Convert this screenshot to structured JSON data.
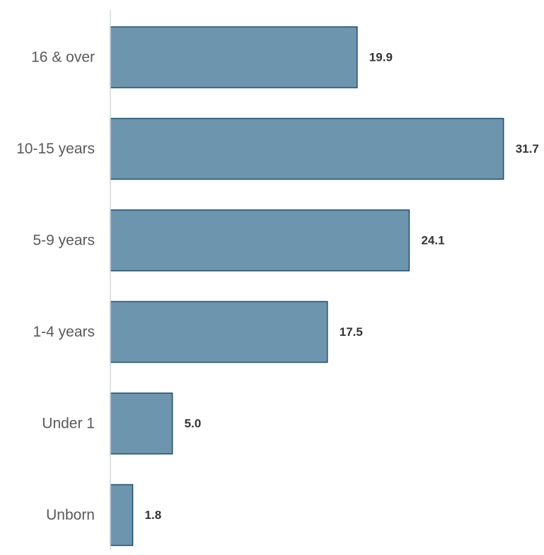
{
  "chart_data": {
    "type": "bar",
    "orientation": "horizontal",
    "categories": [
      "16 & over",
      "10-15 years",
      "5-9 years",
      "1-4 years",
      "Under 1",
      "Unborn"
    ],
    "values": [
      19.9,
      31.7,
      24.1,
      17.5,
      5.0,
      1.8
    ],
    "value_labels": [
      "19.9",
      "31.7",
      "24.1",
      "17.5",
      "5.0",
      "1.8"
    ],
    "title": "",
    "xlabel": "",
    "ylabel": "",
    "grid": false,
    "legend": "none",
    "colors": {
      "bar_fill": "#6e95ae",
      "bar_stroke": "#1f4e6b",
      "axis": "#d9d9d9"
    }
  }
}
